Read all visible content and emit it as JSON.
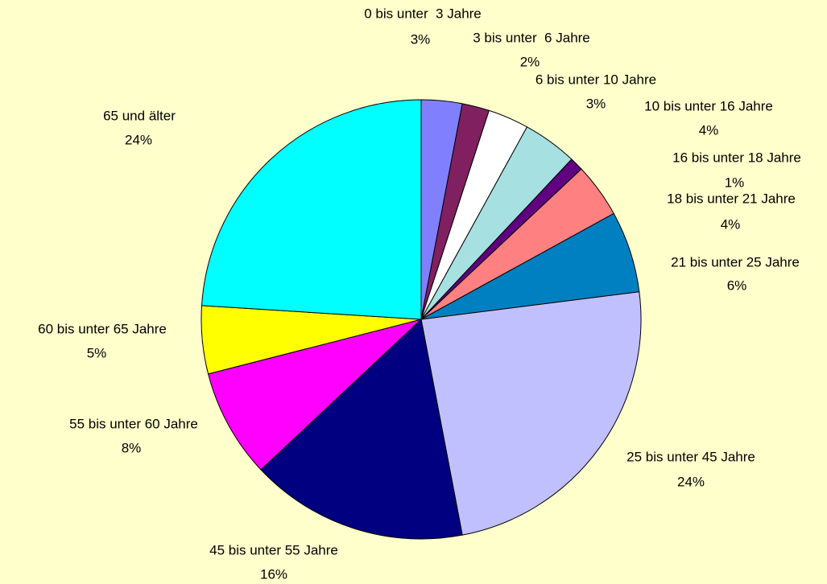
{
  "chart_data": {
    "type": "pie",
    "categories": [
      "0 bis unter  3 Jahre",
      "3 bis unter  6 Jahre",
      "6 bis unter 10 Jahre",
      "10 bis unter 16 Jahre",
      "16 bis unter 18 Jahre",
      "18 bis unter 21 Jahre",
      "21 bis unter 25 Jahre",
      "25 bis unter 45 Jahre",
      "45 bis unter 55 Jahre",
      "55 bis unter 60 Jahre",
      "60 bis unter 65 Jahre",
      "65 und älter"
    ],
    "values": [
      3,
      2,
      3,
      4,
      1,
      4,
      6,
      24,
      16,
      8,
      5,
      24
    ],
    "value_labels": [
      "3%",
      "2%",
      "3%",
      "4%",
      "1%",
      "4%",
      "6%",
      "24%",
      "16%",
      "8%",
      "5%",
      "24%"
    ],
    "colors": [
      "#8080ff",
      "#802060",
      "#ffffff",
      "#a6e0e0",
      "#600080",
      "#ff8080",
      "#0080c0",
      "#c0c0ff",
      "#000080",
      "#ff00ff",
      "#ffff00",
      "#00ffff"
    ]
  }
}
